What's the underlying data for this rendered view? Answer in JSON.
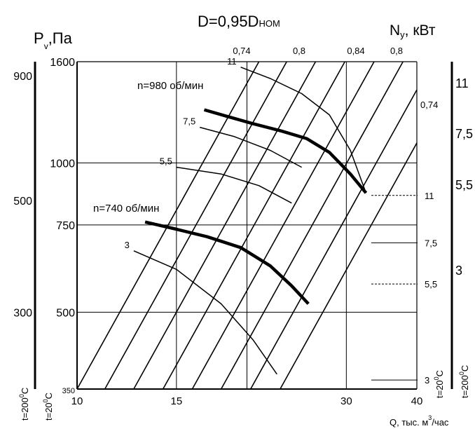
{
  "chart_data": {
    "type": "line",
    "title": "D=0,95D",
    "title_sub": "НОМ",
    "xlabel": "Q, тыс. м",
    "xlabel_sup": "3",
    "xlabel_tail": "/час",
    "ylabel": "P",
    "ylabel_sub": "v",
    "ylabel_tail": ",Па",
    "right_label": "N",
    "right_label_sub": "у",
    "right_label_tail": ",  кВт",
    "x_ticks": [
      10,
      15,
      30,
      40
    ],
    "x_scale": "log",
    "xlim": [
      10,
      40
    ],
    "y_scale": "log",
    "ylim": [
      350,
      1600
    ],
    "y_ticks": [
      {
        "label": "1600",
        "value": 1600
      },
      {
        "label": "1000",
        "value": 1000
      },
      {
        "label": "750",
        "value": 750
      },
      {
        "label": "500",
        "value": 500
      },
      {
        "label": "350",
        "value": 350
      }
    ],
    "left_outer_ticks": [
      {
        "label": "900",
        "value": 1500
      },
      {
        "label": "500",
        "value": 840
      },
      {
        "label": "300",
        "value": 500
      }
    ],
    "left_temp_labels": [
      "t=200",
      "t=20"
    ],
    "right_temp_labels": [
      "t=20",
      "t=200"
    ],
    "degree_unit": "0",
    "degree_tail": "C",
    "efficiency_top_labels": [
      "0,74",
      "0,8",
      "0,84",
      "0,8"
    ],
    "efficiency_side_label": "0,74",
    "series": [
      {
        "name": "n=980 об/мин",
        "x": [
          16.8,
          18.5,
          20.5,
          23,
          25.5,
          28,
          30.5,
          32.5
        ],
        "y": [
          1280,
          1240,
          1200,
          1160,
          1120,
          1050,
          950,
          870
        ]
      },
      {
        "name": "n=740 об/мин",
        "x": [
          13.2,
          15,
          17,
          19.5,
          22,
          24,
          25.7
        ],
        "y": [
          760,
          735,
          710,
          675,
          620,
          565,
          520
        ]
      }
    ],
    "power_curves": [
      {
        "label": "11",
        "x": [
          19.5,
          22,
          25,
          28,
          30.5,
          32.5
        ],
        "y": [
          1560,
          1480,
          1380,
          1250,
          1060,
          870
        ]
      },
      {
        "label": "7,5",
        "x": [
          16.5,
          19,
          22,
          25
        ],
        "y": [
          1180,
          1130,
          1060,
          980
        ]
      },
      {
        "label": "5,5",
        "x": [
          15,
          18,
          21,
          24
        ],
        "y": [
          980,
          950,
          900,
          830
        ]
      },
      {
        "label": "3",
        "x": [
          12.6,
          15,
          18,
          20.5,
          22.6
        ],
        "y": [
          665,
          610,
          520,
          440,
          375
        ]
      }
    ],
    "power_right_labels": [
      {
        "label": "11",
        "value": 860
      },
      {
        "label": "7,5",
        "value": 690
      },
      {
        "label": "5,5",
        "value": 570
      },
      {
        "label": "3",
        "value": 365
      }
    ],
    "right_axis_labels": [
      "11",
      "7,5",
      "5,5",
      "3"
    ],
    "notes": "Thick lines: fan P-Q characteristics at 980 and 740 rpm; thin curves: constant-power lines; diagonal lines: efficiency rays."
  }
}
